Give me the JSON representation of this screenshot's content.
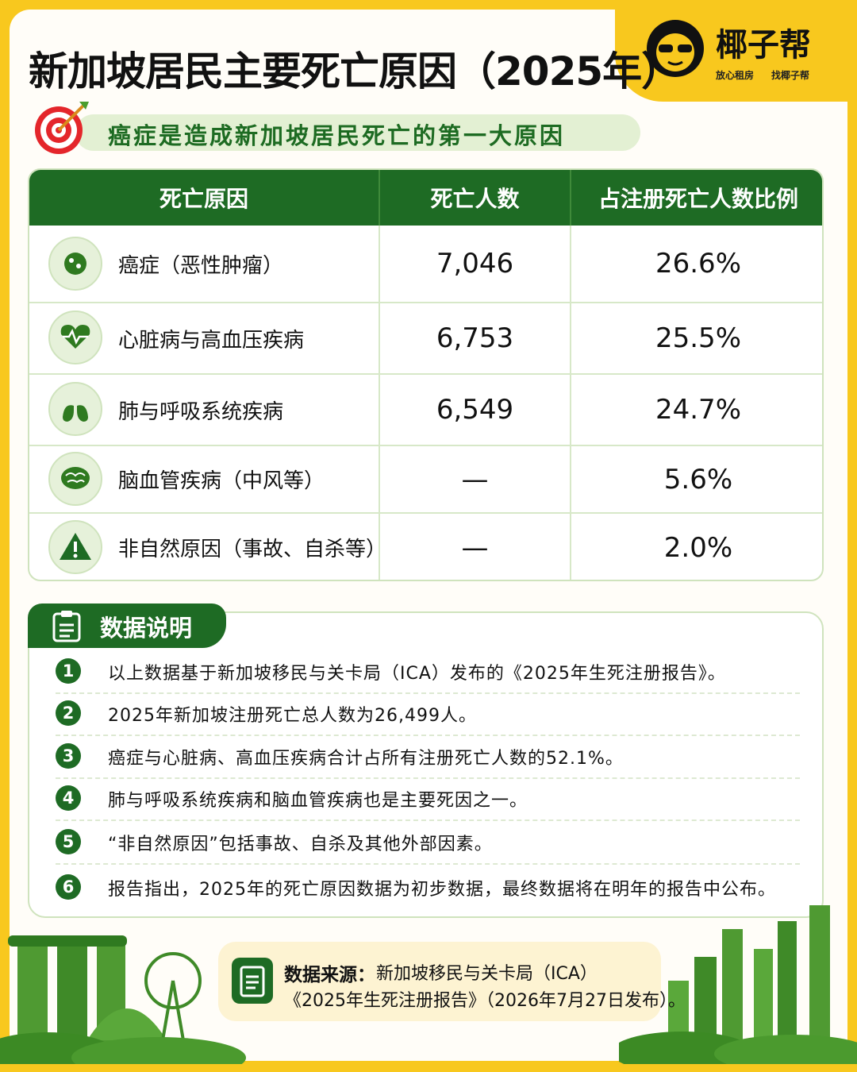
{
  "header": {
    "title": "新加坡居民主要死亡原因（2025年）",
    "brand": {
      "name": "椰子帮",
      "tagline_1": "放心租房",
      "tagline_2": "找椰子帮"
    },
    "subtitle": "癌症是造成新加坡居民死亡的第一大原因"
  },
  "table": {
    "columns": [
      "死亡原因",
      "死亡人数",
      "占注册死亡人数比例"
    ],
    "rows": [
      [
        "癌症（恶性肿瘤）",
        "7,046",
        "26.6%"
      ],
      [
        "心脏病与高血压疾病",
        "6,753",
        "25.5%"
      ],
      [
        "肺与呼吸系统疾病",
        "6,549",
        "24.7%"
      ],
      [
        "脑血管疾病（中风等）",
        "—",
        "5.6%"
      ],
      [
        "非自然原因（事故、自杀等）",
        "—",
        "2.0%"
      ]
    ]
  },
  "notes": {
    "title": "数据说明",
    "items": [
      {
        "number": "1",
        "text": "以上数据基于新加坡移民与关卡局（ICA）发布的《2025年生死注册报告》。"
      },
      {
        "number": "2",
        "text": "2025年新加坡注册死亡总人数为26,499人。"
      },
      {
        "number": "3",
        "text": "癌症与心脏病、高血压疾病合计占所有注册死亡人数的52.1%。"
      },
      {
        "number": "4",
        "text": "肺与呼吸系统疾病和脑血管疾病也是主要死因之一。"
      },
      {
        "number": "5",
        "text": "“非自然原因”包括事故、自杀及其他外部因素。"
      },
      {
        "number": "6",
        "text": "报告指出，2025年的死亡原因数据为初步数据，最终数据将在明年的报告中公布。"
      }
    ]
  },
  "source": {
    "label": "数据来源：",
    "line_1": "新加坡移民与关卡局（ICA）",
    "line_2": "《2025年生死注册报告》（2026年7月27日发布）。"
  }
}
